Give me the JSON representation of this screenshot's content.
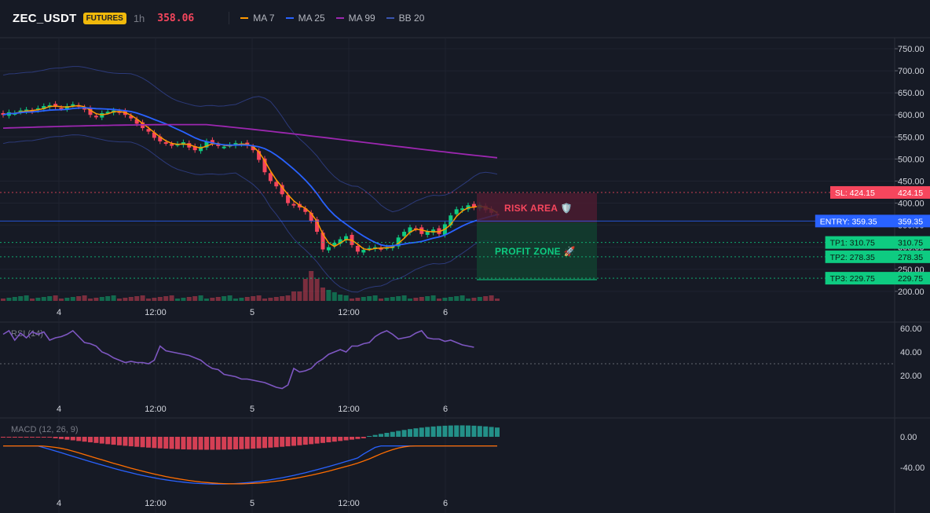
{
  "header": {
    "symbol": "ZEC_USDT",
    "badge": "FUTURES",
    "timeframe": "1h",
    "price": "358.06",
    "legend": [
      {
        "label": "MA 7",
        "color": "#ff9800"
      },
      {
        "label": "MA 25",
        "color": "#2962ff"
      },
      {
        "label": "MA 99",
        "color": "#9c27b0"
      },
      {
        "label": "BB 20",
        "color": "#3a55b0"
      }
    ]
  },
  "colors": {
    "up": "#0ecb81",
    "down": "#f6465d",
    "ma7": "#ff9800",
    "ma25": "#2962ff",
    "ma99": "#9c27b0",
    "bb": "#2c3a7a",
    "rsi": "#7e57c2",
    "macd": "#2962ff",
    "signal": "#ff6d00"
  },
  "price_axis": {
    "ticks": [
      "750.00",
      "700.00",
      "650.00",
      "600.00",
      "550.00",
      "500.00",
      "450.00",
      "400.00",
      "350.00",
      "300.00",
      "250.00",
      "200.00"
    ]
  },
  "time_axis": {
    "labels": [
      "4",
      "12:00",
      "5",
      "12:00",
      "6"
    ]
  },
  "levels": [
    {
      "id": "sl",
      "label": "SL: 424.15",
      "value": "424.15",
      "color": "#f6465d",
      "price": 424.15
    },
    {
      "id": "entry",
      "label": "ENTRY: 359.35",
      "value": "359.35",
      "color": "#2962ff",
      "price": 359.35
    },
    {
      "id": "tp1",
      "label": "TP1: 310.75",
      "value": "310.75",
      "color": "#0ecb81",
      "price": 310.75
    },
    {
      "id": "tp2",
      "label": "TP2: 278.35",
      "value": "278.35",
      "color": "#0ecb81",
      "price": 278.35
    },
    {
      "id": "tp3",
      "label": "TP3: 229.75",
      "value": "229.75",
      "color": "#0ecb81",
      "price": 229.75
    }
  ],
  "zones": {
    "risk": "RISK AREA 🛡️",
    "profit": "PROFIT ZONE 🚀"
  },
  "rsi": {
    "label": "RSI (14)",
    "ticks": [
      "60.00",
      "40.00",
      "20.00"
    ],
    "values": [
      55,
      58,
      50,
      56,
      52,
      57,
      55,
      57,
      50,
      52,
      53,
      55,
      58,
      53,
      48,
      47,
      45,
      40,
      38,
      35,
      33,
      31,
      32,
      31,
      31,
      30,
      33,
      45,
      41,
      40,
      39,
      38,
      37,
      35,
      33,
      29,
      26,
      25,
      21,
      20,
      19,
      17,
      17,
      16,
      15,
      14,
      12,
      10,
      9,
      12,
      26,
      23,
      24,
      26,
      31,
      34,
      38,
      40,
      42,
      40,
      45,
      45,
      47,
      48,
      53,
      56,
      58,
      55,
      51,
      52,
      53,
      56,
      58,
      52,
      51,
      51,
      49,
      50,
      48,
      46,
      45,
      44
    ]
  },
  "macd": {
    "label": "MACD (12, 26, 9)",
    "ticks": [
      "0.00",
      "-40.00"
    ]
  }
}
